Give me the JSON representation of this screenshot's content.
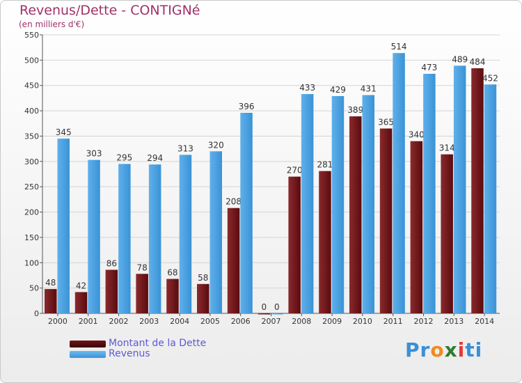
{
  "header": {
    "title": "Revenus/Dette - CONTIGNé",
    "subtitle": "(en milliers d'€)"
  },
  "legend": {
    "dette_label": "Montant de la Dette",
    "revenus_label": "Revenus"
  },
  "logo": {
    "text": "Proxiti",
    "letters": [
      "P",
      "r",
      "o",
      "x",
      "i",
      "t",
      "i"
    ],
    "letter_colors": [
      "#3b8fd6",
      "#3b8fd6",
      "#f08a1e",
      "#2e7d32",
      "#e53935",
      "#3b8fd6",
      "#3b8fd6"
    ]
  },
  "colors": {
    "dette": "#6e1518",
    "revenus": "#3b95d8",
    "title": "#a0306a",
    "legend_text": "#5b5bd6"
  },
  "chart_data": {
    "type": "bar",
    "title": "Revenus/Dette - CONTIGNé",
    "subtitle": "(en milliers d'€)",
    "categories": [
      "2000",
      "2001",
      "2002",
      "2003",
      "2004",
      "2005",
      "2006",
      "2007",
      "2008",
      "2009",
      "2010",
      "2011",
      "2012",
      "2013",
      "2014"
    ],
    "series": [
      {
        "name": "Montant de la Dette",
        "values": [
          48,
          42,
          86,
          78,
          68,
          58,
          208,
          0,
          270,
          281,
          389,
          365,
          340,
          314,
          484
        ]
      },
      {
        "name": "Revenus",
        "values": [
          345,
          303,
          295,
          294,
          313,
          320,
          396,
          0,
          433,
          429,
          431,
          514,
          473,
          489,
          452
        ]
      }
    ],
    "ylim": [
      0,
      550
    ],
    "yticks": [
      0,
      50,
      100,
      150,
      200,
      250,
      300,
      350,
      400,
      450,
      500,
      550
    ],
    "grid": true,
    "legend_position": "bottom-left"
  }
}
